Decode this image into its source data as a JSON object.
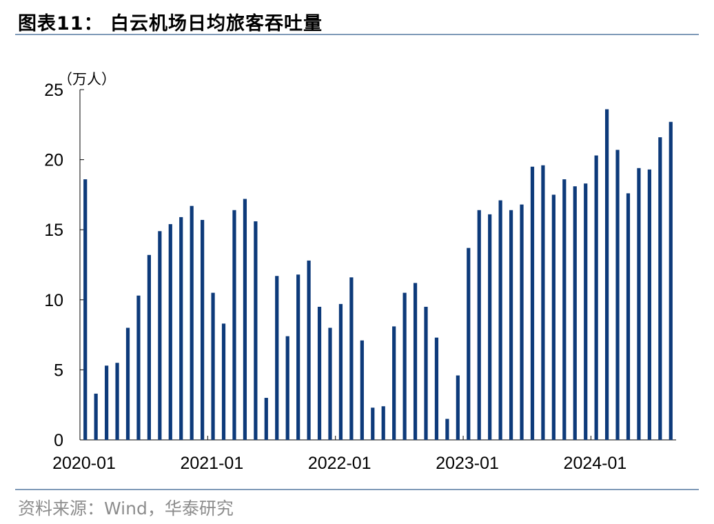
{
  "header": {
    "title": "图表11：  白云机场日均旅客吞吐量"
  },
  "footer": {
    "source": "资料来源：Wind，华泰研究"
  },
  "colors": {
    "bar": "#0d3a7a",
    "rule": "#7f9ab8",
    "axis": "#000000",
    "source_text": "#8c8c8c"
  },
  "chart_data": {
    "type": "bar",
    "title": "白云机场日均旅客吞吐量",
    "unit_label": "（万人）",
    "ylim": [
      0,
      25
    ],
    "yticks": [
      0,
      5,
      10,
      15,
      20,
      25
    ],
    "xtick_labels": [
      "2020-01",
      "2021-01",
      "2022-01",
      "2023-01",
      "2024-01"
    ],
    "xtick_indices": [
      0,
      12,
      24,
      36,
      48
    ],
    "grid": false,
    "legend": "none",
    "categories": [
      "2020-01",
      "2020-02",
      "2020-03",
      "2020-04",
      "2020-05",
      "2020-06",
      "2020-07",
      "2020-08",
      "2020-09",
      "2020-10",
      "2020-11",
      "2020-12",
      "2021-01",
      "2021-02",
      "2021-03",
      "2021-04",
      "2021-05",
      "2021-06",
      "2021-07",
      "2021-08",
      "2021-09",
      "2021-10",
      "2021-11",
      "2021-12",
      "2022-01",
      "2022-02",
      "2022-03",
      "2022-04",
      "2022-05",
      "2022-06",
      "2022-07",
      "2022-08",
      "2022-09",
      "2022-10",
      "2022-11",
      "2022-12",
      "2023-01",
      "2023-02",
      "2023-03",
      "2023-04",
      "2023-05",
      "2023-06",
      "2023-07",
      "2023-08",
      "2023-09",
      "2023-10",
      "2023-11",
      "2023-12",
      "2024-01",
      "2024-02",
      "2024-03",
      "2024-04",
      "2024-05",
      "2024-06",
      "2024-07",
      "2024-08"
    ],
    "values": [
      18.6,
      3.3,
      5.3,
      5.5,
      8.0,
      10.3,
      13.2,
      14.9,
      15.4,
      15.9,
      16.7,
      15.7,
      10.5,
      8.3,
      16.4,
      17.2,
      15.6,
      3.0,
      11.7,
      7.4,
      11.8,
      12.8,
      9.5,
      8.0,
      9.7,
      11.6,
      7.1,
      2.3,
      2.4,
      8.1,
      10.5,
      11.2,
      9.5,
      7.3,
      1.5,
      4.6,
      13.7,
      16.4,
      16.1,
      17.1,
      16.4,
      16.8,
      19.5,
      19.6,
      17.5,
      18.6,
      18.1,
      18.3,
      20.3,
      23.6,
      20.7,
      17.6,
      19.4,
      19.3,
      21.6,
      22.7
    ]
  }
}
